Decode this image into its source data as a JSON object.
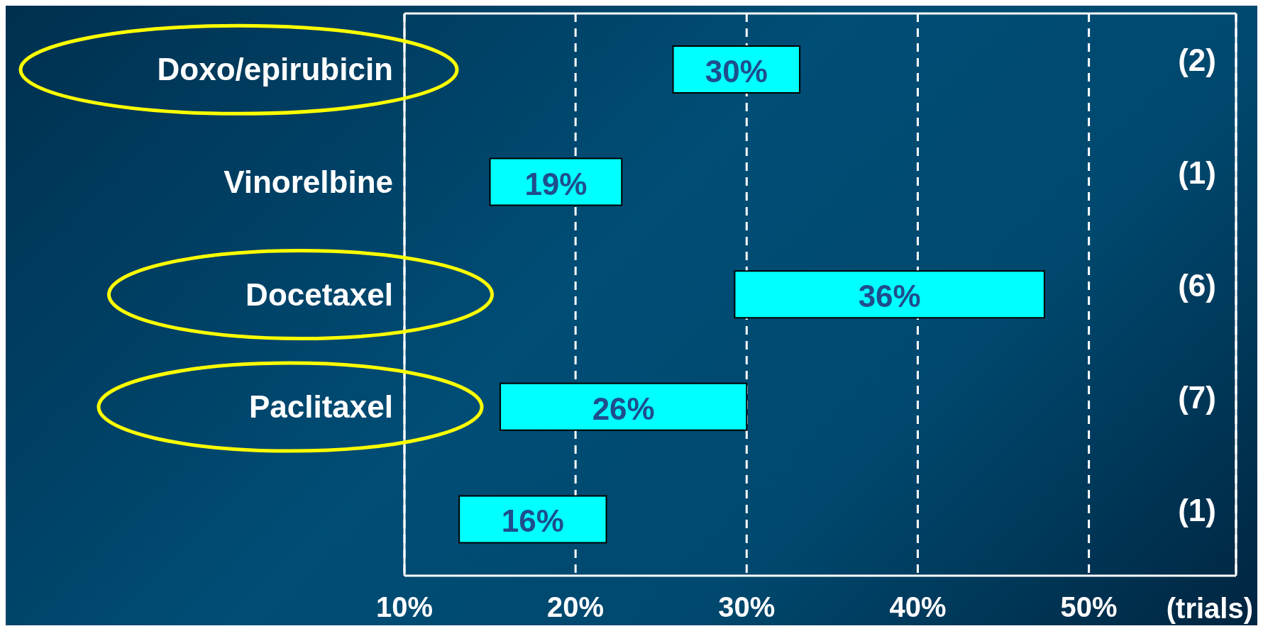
{
  "chart_data": {
    "type": "bar",
    "orientation": "horizontal",
    "xlabel": "(trials)",
    "categories": [
      "Doxo/epirubicin",
      "Vinorelbine",
      "Docetaxel",
      "Paclitaxel",
      null
    ],
    "base": [
      25.7,
      15.0,
      29.3,
      15.6,
      13.2
    ],
    "values": [
      7.4,
      7.7,
      18.1,
      14.4,
      8.6
    ],
    "color": "#00ffff",
    "xlim": [
      10,
      58.6
    ],
    "xticks": [
      {
        "value": 10,
        "label": "10%"
      },
      {
        "value": 20,
        "label": "20%"
      },
      {
        "value": 30,
        "label": "30%"
      },
      {
        "value": 40,
        "label": "40%"
      },
      {
        "value": 50,
        "label": "50%"
      }
    ],
    "annotations": [
      "(2)",
      "(1)",
      "(6)",
      "(7)",
      "(1)",
      "30%",
      "19%",
      "36%",
      "26%",
      "16%"
    ],
    "grid": "x"
  }
}
